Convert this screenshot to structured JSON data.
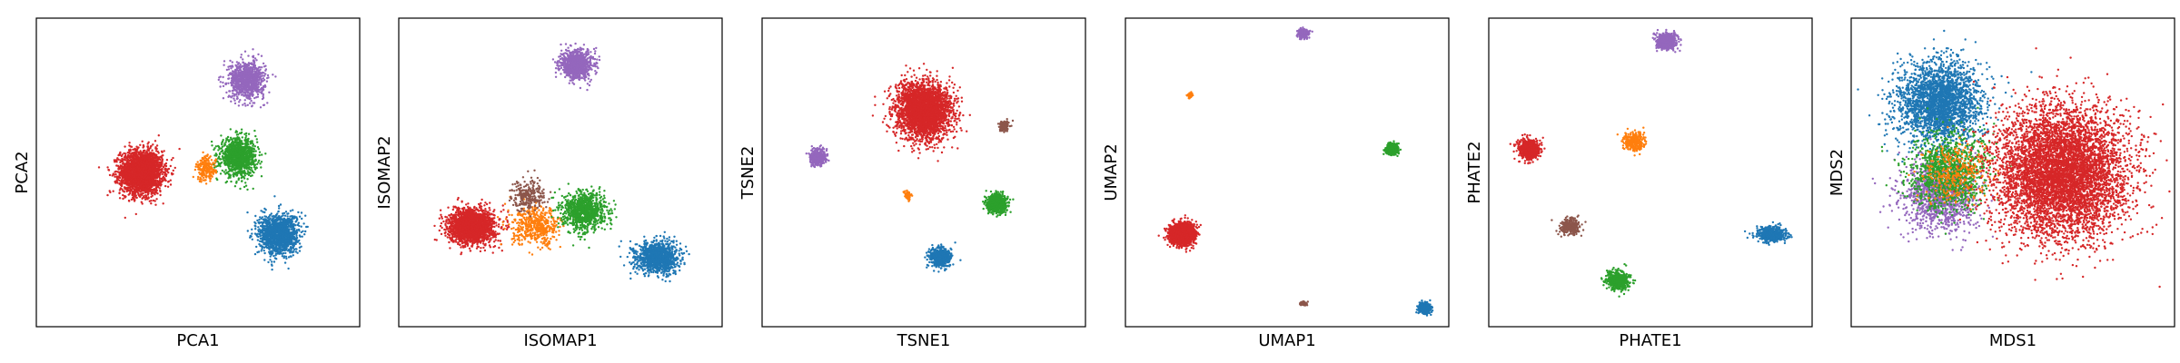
{
  "chart_data": [
    {
      "type": "scatter",
      "xlabel": "PCA1",
      "ylabel": "PCA2",
      "xlim": [
        -10,
        10
      ],
      "ylim": [
        -10,
        10
      ],
      "grid": false,
      "ticks": false,
      "series": [
        {
          "color": "#d62728",
          "center": [
            -3.5,
            0.0
          ],
          "spread": [
            1.3,
            1.4
          ],
          "count": 2600
        },
        {
          "color": "#2ca02c",
          "center": [
            2.5,
            1.0
          ],
          "spread": [
            1.1,
            1.2
          ],
          "count": 1100
        },
        {
          "color": "#ff7f0e",
          "center": [
            0.5,
            0.2
          ],
          "spread": [
            0.6,
            0.8
          ],
          "count": 200
        },
        {
          "color": "#9467bd",
          "center": [
            3.0,
            6.0
          ],
          "spread": [
            1.1,
            1.2
          ],
          "count": 900
        },
        {
          "color": "#1f77b4",
          "center": [
            5.0,
            -4.0
          ],
          "spread": [
            1.2,
            1.3
          ],
          "count": 1400
        }
      ]
    },
    {
      "type": "scatter",
      "xlabel": "ISOMAP1",
      "ylabel": "ISOMAP2",
      "xlim": [
        -10,
        10
      ],
      "ylim": [
        -10,
        10
      ],
      "grid": false,
      "ticks": false,
      "series": [
        {
          "color": "#d62728",
          "center": [
            -5.5,
            -3.5
          ],
          "spread": [
            1.4,
            1.1
          ],
          "count": 2000
        },
        {
          "color": "#ff7f0e",
          "center": [
            -1.5,
            -3.5
          ],
          "spread": [
            1.5,
            1.2
          ],
          "count": 500
        },
        {
          "color": "#8c564b",
          "center": [
            -2.0,
            -1.5
          ],
          "spread": [
            1.0,
            1.0
          ],
          "count": 250
        },
        {
          "color": "#2ca02c",
          "center": [
            1.5,
            -2.5
          ],
          "spread": [
            1.3,
            1.2
          ],
          "count": 1000
        },
        {
          "color": "#9467bd",
          "center": [
            1.0,
            7.0
          ],
          "spread": [
            1.0,
            0.9
          ],
          "count": 900
        },
        {
          "color": "#1f77b4",
          "center": [
            6.0,
            -5.5
          ],
          "spread": [
            1.3,
            1.0
          ],
          "count": 1200
        }
      ]
    },
    {
      "type": "scatter",
      "xlabel": "TSNE1",
      "ylabel": "TSNE2",
      "xlim": [
        -10,
        10
      ],
      "ylim": [
        -10,
        10
      ],
      "grid": false,
      "ticks": false,
      "series": [
        {
          "color": "#d62728",
          "center": [
            0.0,
            4.0
          ],
          "spread": [
            1.7,
            1.8
          ],
          "count": 3000
        },
        {
          "color": "#9467bd",
          "center": [
            -6.5,
            1.0
          ],
          "spread": [
            0.5,
            0.5
          ],
          "count": 400
        },
        {
          "color": "#ff7f0e",
          "center": [
            -1.0,
            -1.5
          ],
          "spread": [
            0.2,
            0.25
          ],
          "count": 80
        },
        {
          "color": "#8c564b",
          "center": [
            5.0,
            3.0
          ],
          "spread": [
            0.3,
            0.3
          ],
          "count": 120
        },
        {
          "color": "#2ca02c",
          "center": [
            4.5,
            -2.0
          ],
          "spread": [
            0.6,
            0.6
          ],
          "count": 700
        },
        {
          "color": "#1f77b4",
          "center": [
            1.0,
            -5.5
          ],
          "spread": [
            0.6,
            0.6
          ],
          "count": 700
        }
      ]
    },
    {
      "type": "scatter",
      "xlabel": "UMAP1",
      "ylabel": "UMAP2",
      "xlim": [
        -10,
        10
      ],
      "ylim": [
        -10,
        10
      ],
      "grid": false,
      "ticks": false,
      "series": [
        {
          "color": "#d62728",
          "center": [
            -6.5,
            -4.0
          ],
          "spread": [
            0.7,
            0.65
          ],
          "count": 2500
        },
        {
          "color": "#ff7f0e",
          "center": [
            -6.0,
            5.0
          ],
          "spread": [
            0.15,
            0.15
          ],
          "count": 60
        },
        {
          "color": "#9467bd",
          "center": [
            1.0,
            9.0
          ],
          "spread": [
            0.3,
            0.3
          ],
          "count": 250
        },
        {
          "color": "#2ca02c",
          "center": [
            6.5,
            1.5
          ],
          "spread": [
            0.35,
            0.35
          ],
          "count": 500
        },
        {
          "color": "#8c564b",
          "center": [
            1.0,
            -8.5
          ],
          "spread": [
            0.2,
            0.12
          ],
          "count": 80
        },
        {
          "color": "#1f77b4",
          "center": [
            8.5,
            -8.8
          ],
          "spread": [
            0.35,
            0.3
          ],
          "count": 500
        }
      ]
    },
    {
      "type": "scatter",
      "xlabel": "PHATE1",
      "ylabel": "PHATE2",
      "xlim": [
        -10,
        10
      ],
      "ylim": [
        -10,
        10
      ],
      "grid": false,
      "ticks": false,
      "series": [
        {
          "color": "#d62728",
          "center": [
            -7.5,
            1.5
          ],
          "spread": [
            0.6,
            0.6
          ],
          "count": 700
        },
        {
          "color": "#9467bd",
          "center": [
            1.0,
            8.5
          ],
          "spread": [
            0.6,
            0.5
          ],
          "count": 600
        },
        {
          "color": "#ff7f0e",
          "center": [
            -1.0,
            2.0
          ],
          "spread": [
            0.7,
            0.6
          ],
          "count": 300
        },
        {
          "color": "#8c564b",
          "center": [
            -5.0,
            -3.5
          ],
          "spread": [
            0.6,
            0.5
          ],
          "count": 300
        },
        {
          "color": "#2ca02c",
          "center": [
            -2.0,
            -7.0
          ],
          "spread": [
            0.7,
            0.6
          ],
          "count": 500
        },
        {
          "color": "#1f77b4",
          "center": [
            7.5,
            -4.0
          ],
          "spread": [
            0.8,
            0.5
          ],
          "count": 600
        }
      ]
    },
    {
      "type": "scatter",
      "xlabel": "MDS1",
      "ylabel": "MDS2",
      "xlim": [
        -10,
        10
      ],
      "ylim": [
        -10,
        10
      ],
      "grid": false,
      "ticks": false,
      "series": [
        {
          "color": "#1f77b4",
          "center": [
            -4.5,
            4.5
          ],
          "spread": [
            2.6,
            2.6
          ],
          "count": 2500
        },
        {
          "color": "#9467bd",
          "center": [
            -4.5,
            -1.5
          ],
          "spread": [
            2.3,
            2.3
          ],
          "count": 1200
        },
        {
          "color": "#2ca02c",
          "center": [
            -4.0,
            0.0
          ],
          "spread": [
            2.4,
            2.4
          ],
          "count": 1200
        },
        {
          "color": "#ff7f0e",
          "center": [
            -3.5,
            0.0
          ],
          "spread": [
            2.0,
            2.0
          ],
          "count": 300
        },
        {
          "color": "#d62728",
          "center": [
            3.0,
            0.0
          ],
          "spread": [
            4.0,
            4.1
          ],
          "count": 6000
        }
      ]
    }
  ]
}
